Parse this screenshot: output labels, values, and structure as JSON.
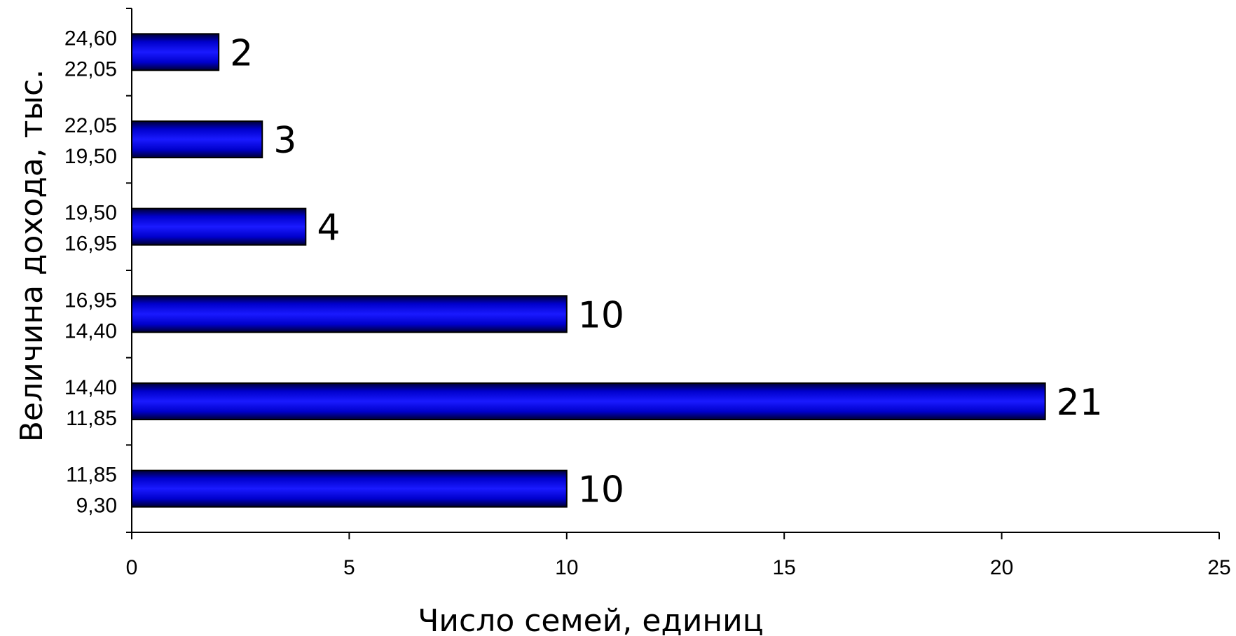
{
  "chart_data": {
    "type": "bar",
    "orientation": "horizontal",
    "categories": [
      [
        "11,85",
        "9,30"
      ],
      [
        "14,40",
        "11,85"
      ],
      [
        "16,95",
        "14,40"
      ],
      [
        "19,50",
        "16,95"
      ],
      [
        "22,05",
        "19,50"
      ],
      [
        "24,60",
        "22,05"
      ]
    ],
    "values": [
      10,
      21,
      10,
      4,
      3,
      2
    ],
    "data_labels": [
      "10",
      "21",
      "10",
      "4",
      "3",
      "2"
    ],
    "xlim": [
      0,
      25
    ],
    "xticks": [
      0,
      5,
      10,
      15,
      20,
      25
    ],
    "xlabel": "Число семей, единиц",
    "ylabel": "Величина дохода, тыс.",
    "bar_color": "#0000ff",
    "bar_edge_color": "#000000",
    "grid": false,
    "legend": "none"
  }
}
